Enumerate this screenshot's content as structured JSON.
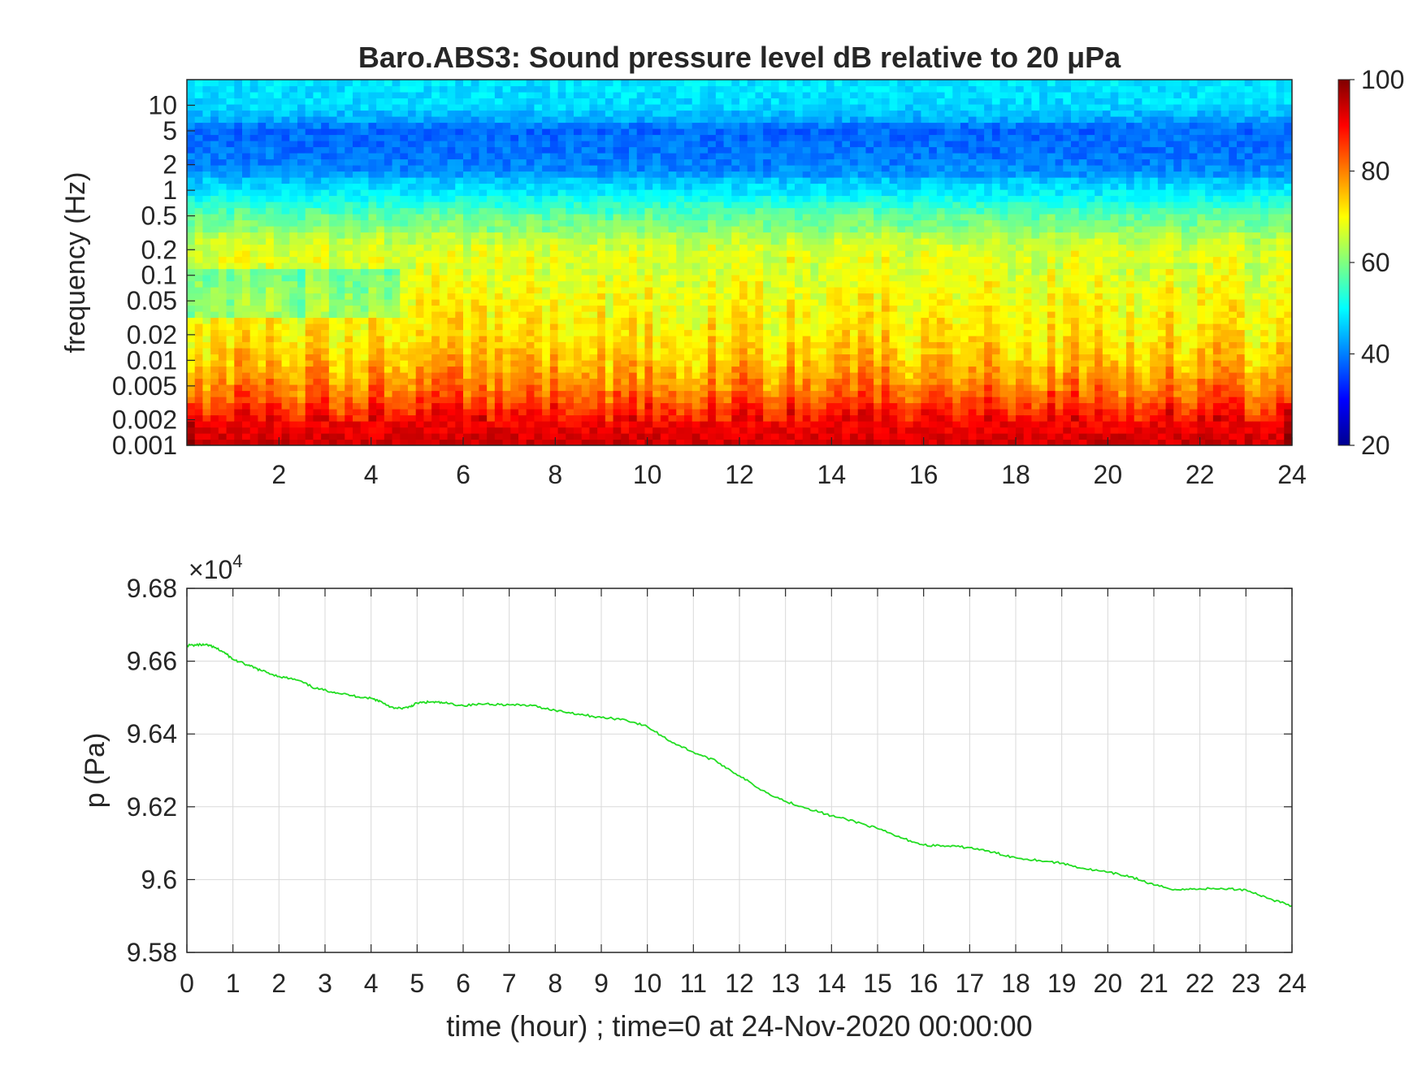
{
  "chart_data": [
    {
      "type": "heatmap",
      "title": "Baro.ABS3: Sound pressure level dB relative to 20 μPa",
      "xlabel": "",
      "ylabel": "frequency (Hz)",
      "x_ticks": [
        "2",
        "4",
        "6",
        "8",
        "10",
        "12",
        "14",
        "16",
        "18",
        "20",
        "22",
        "24"
      ],
      "xlim": [
        0,
        24
      ],
      "y_scale": "log",
      "ylim": [
        0.001,
        20
      ],
      "y_ticks": [
        "10",
        "5",
        "2",
        "1",
        "0.5",
        "0.2",
        "0.1",
        "0.05",
        "0.02",
        "0.01",
        "0.005",
        "0.002",
        "0.001"
      ],
      "colormap": "jet",
      "color_range": [
        20,
        100
      ],
      "colorbar_ticks": [
        "100",
        "80",
        "60",
        "40",
        "20"
      ],
      "level_profile_db": {
        "frequency_hz": [
          20,
          10,
          5,
          2,
          1,
          0.5,
          0.2,
          0.1,
          0.05,
          0.02,
          0.01,
          0.005,
          0.002,
          0.001
        ],
        "level_db": [
          48,
          47,
          40,
          42,
          48,
          58,
          65,
          68,
          70,
          72,
          75,
          80,
          90,
          94
        ]
      }
    },
    {
      "type": "line",
      "xlabel": "time (hour) ; time=0 at 24-Nov-2020 00:00:00",
      "ylabel": "p (Pa)",
      "exponent_label": "×10",
      "exponent_power": "4",
      "xlim": [
        0,
        24
      ],
      "ylim": [
        9.58,
        9.68
      ],
      "x_ticks": [
        "0",
        "1",
        "2",
        "3",
        "4",
        "5",
        "6",
        "7",
        "8",
        "9",
        "10",
        "11",
        "12",
        "13",
        "14",
        "15",
        "16",
        "17",
        "18",
        "19",
        "20",
        "21",
        "22",
        "23",
        "24"
      ],
      "y_ticks": [
        "9.68",
        "9.66",
        "9.64",
        "9.62",
        "9.6",
        "9.58"
      ],
      "grid": true,
      "line_color": "#22dd22",
      "x": [
        0,
        0.3,
        0.5,
        0.8,
        1.0,
        1.3,
        1.6,
        2.0,
        2.4,
        2.8,
        3.2,
        3.6,
        4.0,
        4.2,
        4.5,
        4.8,
        5.0,
        5.3,
        5.6,
        6.0,
        6.5,
        7.0,
        7.5,
        8.0,
        8.5,
        9.0,
        9.5,
        10.0,
        10.5,
        11.0,
        11.5,
        12.0,
        12.5,
        13.0,
        13.5,
        14.0,
        14.5,
        15.0,
        15.5,
        16.0,
        16.5,
        17.0,
        17.5,
        18.0,
        18.5,
        19.0,
        19.5,
        20.0,
        20.5,
        21.0,
        21.5,
        22.0,
        22.5,
        23.0,
        23.5,
        24.0
      ],
      "y": [
        9.6643,
        9.6645,
        9.6643,
        9.6625,
        9.6605,
        9.659,
        9.6575,
        9.6558,
        9.6548,
        9.6525,
        9.6515,
        9.6505,
        9.6498,
        9.649,
        9.647,
        9.6472,
        9.6485,
        9.6488,
        9.6485,
        9.6478,
        9.6483,
        9.648,
        9.6478,
        9.6465,
        9.6455,
        9.6445,
        9.644,
        9.642,
        9.638,
        9.635,
        9.6325,
        9.6285,
        9.6245,
        9.6215,
        9.6195,
        9.6175,
        9.616,
        9.614,
        9.6115,
        9.6095,
        9.6092,
        9.6088,
        9.6075,
        9.606,
        9.6053,
        9.6045,
        9.603,
        9.602,
        9.6008,
        9.5985,
        9.5972,
        9.5975,
        9.5975,
        9.5972,
        9.5948,
        9.5928
      ]
    }
  ]
}
